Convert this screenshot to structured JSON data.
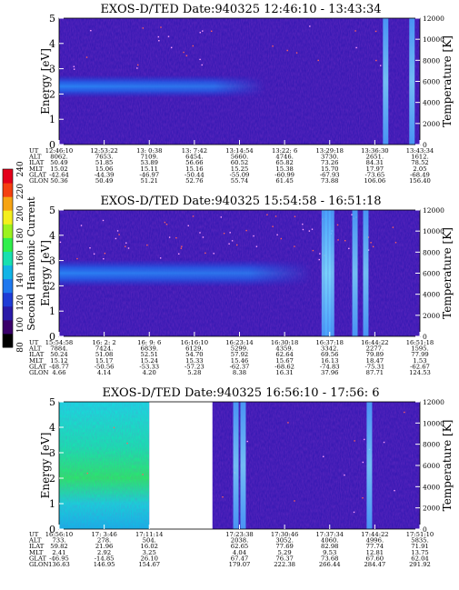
{
  "colorbar": {
    "label": "Second Harmonic Current",
    "ticks": [
      "80",
      "100",
      "120",
      "140",
      "160",
      "180",
      "200",
      "220",
      "240"
    ],
    "colors": [
      "#000000",
      "#3a006a",
      "#2a1aa8",
      "#1f3cd6",
      "#1f78ee",
      "#12b4e6",
      "#18e0b0",
      "#30ef4c",
      "#9cf21e",
      "#f4ef1c",
      "#f6a413",
      "#f54010",
      "#e4001a"
    ]
  },
  "chart_data": [
    {
      "type": "heatmap",
      "title": "EXOS-D/TED   Date:940325   12:46:10 - 13:43:34",
      "ylabel": "Energy [eV]",
      "ylabel_right": "Temperature [K]",
      "ylim": [
        0,
        5
      ],
      "ylim_right": [
        0,
        12000
      ],
      "yticks": [
        "0",
        "1",
        "2",
        "3",
        "4",
        "5"
      ],
      "yticks_right": [
        "0",
        "2000",
        "4000",
        "6000",
        "8000",
        "10000",
        "12000"
      ],
      "band": {
        "center": 2.3,
        "width": 0.9,
        "extent": 0.42
      },
      "spikes": [
        0.905,
        0.978
      ],
      "gaps": [],
      "ephemeris": {
        "labels": [
          "UT",
          "ALT",
          "ILAT",
          "MLT",
          "GLAT",
          "GLON"
        ],
        "columns": [
          [
            "12:46:10",
            "8062.",
            "50.49",
            "15.02",
            "-42.64",
            "50.36"
          ],
          [
            "12:53:22",
            "7653.",
            "51.85",
            "15.06",
            "-44.39",
            "50.49"
          ],
          [
            "13: 0:38",
            "7109.",
            "53.89",
            "15.11",
            "-46.97",
            "51.21"
          ],
          [
            "13: 7:42",
            "6454.",
            "56.66",
            "15.16",
            "-50.44",
            "52.76"
          ],
          [
            "13:14:54",
            "5660.",
            "60.52",
            "15.25",
            "-55.09",
            "55.74"
          ],
          [
            "13:22: 6",
            "4746.",
            "65.82",
            "15.38",
            "-60.99",
            "61.45"
          ],
          [
            "13:29:18",
            "3730.",
            "73.26",
            "15.70",
            "-67.93",
            "73.88"
          ],
          [
            "13:36:30",
            "2651.",
            "84.31",
            "17.97",
            "-73.65",
            "106.06"
          ],
          [
            "13:43:34",
            "1612.",
            "78.52",
            "2.05",
            "-68.49",
            "156.40"
          ]
        ]
      }
    },
    {
      "type": "heatmap",
      "title": "EXOS-D/TED   Date:940325   15:54:58 - 16:51:18",
      "ylabel": "Energy [eV]",
      "ylabel_right": "Temperature [K]",
      "ylim": [
        0,
        5
      ],
      "ylim_right": [
        0,
        12000
      ],
      "yticks": [
        "0",
        "1",
        "2",
        "3",
        "4",
        "5"
      ],
      "yticks_right": [
        "0",
        "2000",
        "4000",
        "6000",
        "8000",
        "10000",
        "12000"
      ],
      "band": {
        "center": 2.5,
        "width": 1.1,
        "extent": 0.55
      },
      "spikes": [
        0.735,
        0.745,
        0.755,
        0.82,
        0.85
      ],
      "gaps": [],
      "ephemeris": {
        "labels": [
          "UT",
          "ALT",
          "ILAT",
          "MLT",
          "GLAT",
          "GLON"
        ],
        "columns": [
          [
            "15:54:58",
            "7884.",
            "50.24",
            "15.12",
            "-48.77",
            "4.66"
          ],
          [
            "16: 2: 2",
            "7424.",
            "51.08",
            "15.17",
            "-50.56",
            "4.14"
          ],
          [
            "16: 9: 6",
            "6839.",
            "52.51",
            "15.24",
            "-53.33",
            "4.20"
          ],
          [
            "16:16:10",
            "6129.",
            "54.70",
            "15.33",
            "-57.23",
            "5.28"
          ],
          [
            "16:23:14",
            "5299.",
            "57.92",
            "15.46",
            "-62.37",
            "8.38"
          ],
          [
            "16:30:18",
            "4359.",
            "62.64",
            "15.67",
            "-68.62",
            "16.31"
          ],
          [
            "16:37:18",
            "3342.",
            "69.56",
            "16.13",
            "-74.83",
            "37.96"
          ],
          [
            "16:44:22",
            "2277.",
            "79.89",
            "18.47",
            "-75.31",
            "87.71"
          ],
          [
            "16:51:18",
            "1595.",
            "77.99",
            "1.53",
            "-62.67",
            "124.53"
          ]
        ]
      }
    },
    {
      "type": "heatmap",
      "title": "EXOS-D/TED   Date:940325   16:56:10 - 17:56: 6",
      "ylabel": "Energy [eV]",
      "ylabel_right": "Temperature [K]",
      "ylim": [
        0,
        5
      ],
      "ylim_right": [
        0,
        12000
      ],
      "yticks": [
        "0",
        "1",
        "2",
        "3",
        "4",
        "5"
      ],
      "yticks_right": [
        "0",
        "2000",
        "4000",
        "6000",
        "8000",
        "10000",
        "12000"
      ],
      "band": {
        "center": 2.5,
        "width": 2.0,
        "extent": 0
      },
      "spikes": [
        0.49,
        0.51,
        0.86
      ],
      "gaps": [
        [
          0.25,
          0.425
        ]
      ],
      "ephemeris": {
        "labels": [
          "UT",
          "ALT",
          "ILAT",
          "MLT",
          "GLAT",
          "GLON"
        ],
        "columns": [
          [
            "16:56:10",
            "733.",
            "59.82",
            "2.41",
            "-46.95",
            "136.63"
          ],
          [
            "17: 3:46",
            "278.",
            "21.96",
            "2.92",
            "-14.85",
            "146.95"
          ],
          [
            "17:11:14",
            "504.",
            "16.02",
            "3.25",
            "26.10",
            "154.67"
          ],
          [
            "",
            "",
            "",
            "",
            "",
            ""
          ],
          [
            "17:23:38",
            "2038.",
            "62.65",
            "4.04",
            "67.47",
            "179.07"
          ],
          [
            "17:30:46",
            "3052.",
            "77.69",
            "5.29",
            "76.37",
            "222.38"
          ],
          [
            "17:37:34",
            "4060.",
            "82.98",
            "9.53",
            "73.68",
            "266.44"
          ],
          [
            "17:44:22",
            "4996.",
            "77.74",
            "12.81",
            "67.60",
            "284.47"
          ],
          [
            "17:51:10",
            "5835.",
            "71.91",
            "13.75",
            "62.04",
            "291.92"
          ]
        ]
      }
    }
  ]
}
